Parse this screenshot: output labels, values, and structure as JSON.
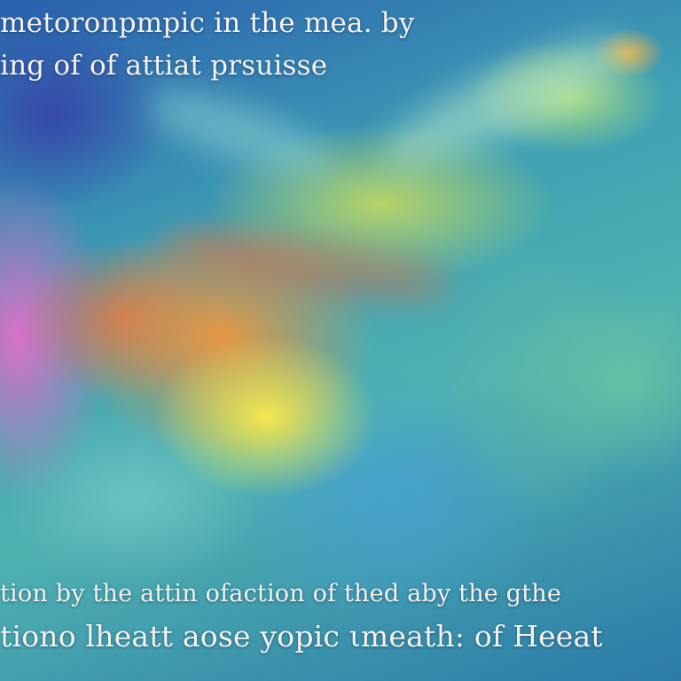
{
  "image": {
    "palette": {
      "deep_blue": "#3746aa",
      "teal": "#3ea0b4",
      "magenta": "#e16ec8",
      "orange": "#f0963c",
      "yellow": "#fcea4a",
      "lime": "#cddc5a",
      "text": "#f4f3ee"
    }
  },
  "captions": {
    "top_line_1": "metoronpmpic in the mea. by",
    "top_line_2": "ing of of attiat prsuisse",
    "bottom_line_1": "tion by the attin ofaction of thed aby the gthe",
    "bottom_line_2": "tiono lheatt aose yopic ιmeath: of Heeat"
  }
}
